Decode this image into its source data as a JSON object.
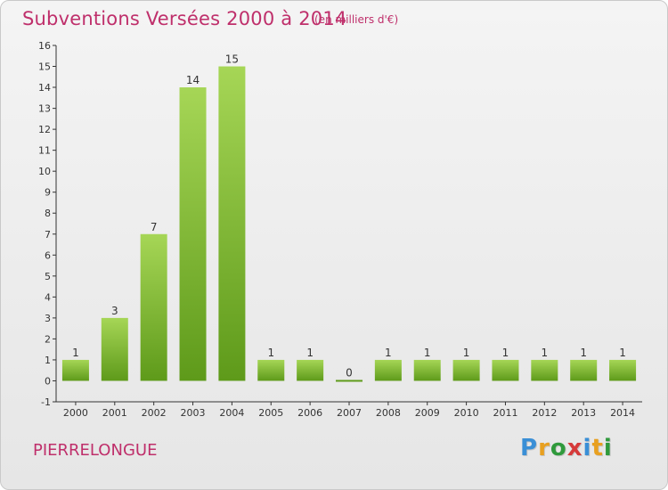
{
  "header": {
    "title": "Subventions Versées 2000 à 2014",
    "unit": "(en milliers d'€)"
  },
  "footer": {
    "place": "PIERRELONGUE",
    "logo": {
      "letters": [
        "P",
        "r",
        "o",
        "x",
        "i",
        "t",
        "i"
      ],
      "colors": [
        "#3a8fd6",
        "#e8a020",
        "#2f9a3c",
        "#d63a3a",
        "#3a8fd6",
        "#e8a020",
        "#2f9a3c"
      ]
    }
  },
  "colors": {
    "bar_light": "#a6d656",
    "bar_dark": "#5e9a1a",
    "text_accent": "#bf2f6b"
  },
  "chart_data": {
    "type": "bar",
    "title": "Subventions Versées 2000 à 2014",
    "subtitle": "(en milliers d'€)",
    "categories": [
      "2000",
      "2001",
      "2002",
      "2003",
      "2004",
      "2005",
      "2006",
      "2007",
      "2008",
      "2009",
      "2010",
      "2011",
      "2012",
      "2013",
      "2014"
    ],
    "values": [
      1,
      3,
      7,
      14,
      15,
      1,
      1,
      0,
      1,
      1,
      1,
      1,
      1,
      1,
      1
    ],
    "value_labels": [
      "1",
      "3",
      "7",
      "14",
      "15",
      "1",
      "1",
      "0",
      "1",
      "1",
      "1",
      "1",
      "1",
      "1",
      "1"
    ],
    "y_ticks": [
      "-1",
      "0",
      "1",
      "2",
      "3",
      "4",
      "5",
      "6",
      "7",
      "8",
      "9",
      "10",
      "11",
      "12",
      "13",
      "14",
      "15",
      "16"
    ],
    "ylim": [
      -1,
      16
    ],
    "xlabel": "",
    "ylabel": "",
    "grid": false,
    "legend": "none"
  }
}
